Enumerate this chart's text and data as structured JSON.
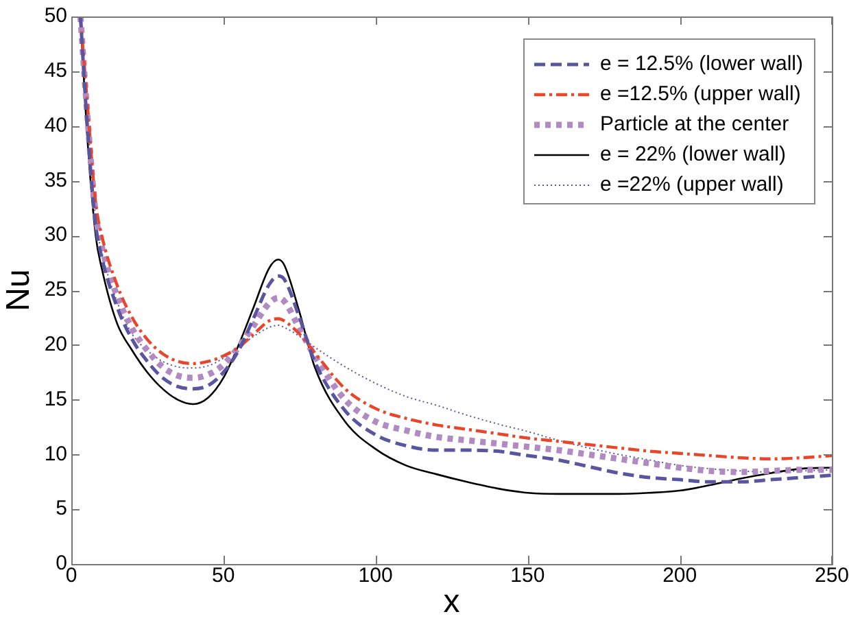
{
  "chart_data": {
    "type": "line",
    "xlabel": "x",
    "ylabel": "Nu",
    "xlim": [
      0,
      250
    ],
    "xticks": [
      0,
      50,
      100,
      150,
      200,
      250
    ],
    "ylim": [
      0,
      50
    ],
    "yticks": [
      0,
      5,
      10,
      15,
      20,
      25,
      30,
      35,
      40,
      45,
      50
    ],
    "grid": false,
    "legend": "top right",
    "marker": "none",
    "x": [
      3,
      5,
      8,
      10,
      15,
      20,
      25,
      30,
      35,
      40,
      45,
      50,
      55,
      60,
      65,
      68,
      70,
      75,
      80,
      90,
      100,
      110,
      120,
      130,
      140,
      150,
      160,
      170,
      180,
      190,
      200,
      210,
      220,
      230,
      240,
      250
    ],
    "series": [
      {
        "name": "e = 12.5% (lower wall)",
        "color": "#5a55a0",
        "line_style": "dashed",
        "values": [
          50,
          41,
          31,
          28,
          23.5,
          20.5,
          18.5,
          17,
          16.2,
          16,
          16.3,
          17.5,
          19.5,
          22.5,
          25.5,
          26.3,
          26,
          22.5,
          18.5,
          14,
          11.8,
          10.8,
          10.4,
          10.4,
          10.3,
          9.9,
          9.5,
          8.9,
          8.3,
          7.9,
          7.7,
          7.5,
          7.5,
          7.7,
          7.9,
          8.1
        ]
      },
      {
        "name": "e =12.5% (upper wall)",
        "color": "#e8452a",
        "line_style": "dashdot",
        "values": [
          50,
          43,
          33,
          30,
          25.5,
          22.5,
          20.5,
          19.2,
          18.5,
          18.3,
          18.5,
          19,
          19.8,
          21,
          22.2,
          22.4,
          22.2,
          21,
          19.3,
          16,
          14.2,
          13.3,
          12.7,
          12.3,
          11.9,
          11.5,
          11.2,
          10.9,
          10.6,
          10.3,
          10.1,
          9.9,
          9.7,
          9.6,
          9.7,
          9.9
        ]
      },
      {
        "name": "Particle at the center",
        "color": "#b08ac0",
        "line_style": "dotted",
        "values": [
          50,
          42,
          32,
          29,
          24.5,
          21.5,
          19.5,
          18,
          17.2,
          17,
          17.3,
          18.2,
          19.8,
          21.8,
          23.8,
          24.3,
          24,
          21.5,
          19,
          15,
          13,
          12.2,
          11.6,
          11.3,
          11,
          10.7,
          10.4,
          10,
          9.6,
          9.2,
          8.8,
          8.5,
          8.4,
          8.5,
          8.6,
          8.6
        ]
      },
      {
        "name": "e = 22% (lower wall)",
        "color": "#000000",
        "line_style": "solid",
        "values": [
          50,
          40,
          30,
          27,
          22,
          19.5,
          17.5,
          16,
          15,
          14.6,
          15.2,
          17,
          20,
          23.5,
          27,
          27.8,
          27.3,
          23,
          18,
          13,
          10.5,
          9,
          8.2,
          7.5,
          6.9,
          6.5,
          6.4,
          6.4,
          6.4,
          6.5,
          6.7,
          7.2,
          7.8,
          8.3,
          8.7,
          8.8
        ]
      },
      {
        "name": "e =22% (upper wall)",
        "color": "#5555aa",
        "line_style": "fine-dotted",
        "values": [
          50,
          42,
          31.5,
          28.5,
          24,
          21,
          19.5,
          18.5,
          18,
          17.9,
          18.1,
          18.8,
          19.8,
          20.8,
          21.6,
          21.8,
          21.6,
          20.8,
          19.8,
          18,
          16.5,
          15.3,
          14.5,
          13.6,
          12.8,
          12.1,
          11.3,
          10.6,
          10,
          9.5,
          9,
          8.7,
          8.5,
          8.4,
          8.5,
          8.6
        ]
      }
    ]
  }
}
